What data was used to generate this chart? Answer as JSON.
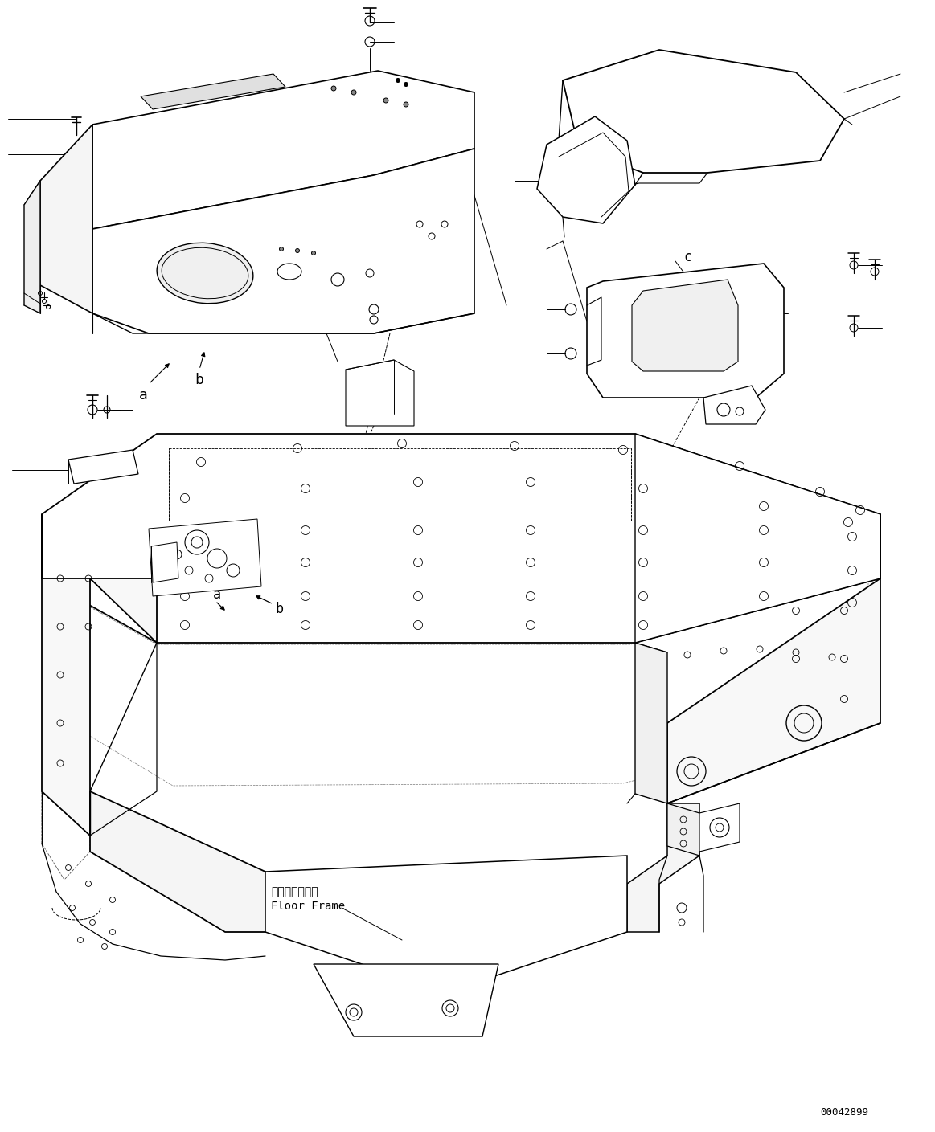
{
  "background_color": "#ffffff",
  "line_color": "#000000",
  "figure_width": 11.63,
  "figure_height": 14.09,
  "dpi": 100,
  "part_id": "00042899",
  "floor_frame_jp": "フロアフレーム",
  "floor_frame_en": "Floor Frame",
  "label_a": "a",
  "label_b": "b",
  "label_c": "c"
}
